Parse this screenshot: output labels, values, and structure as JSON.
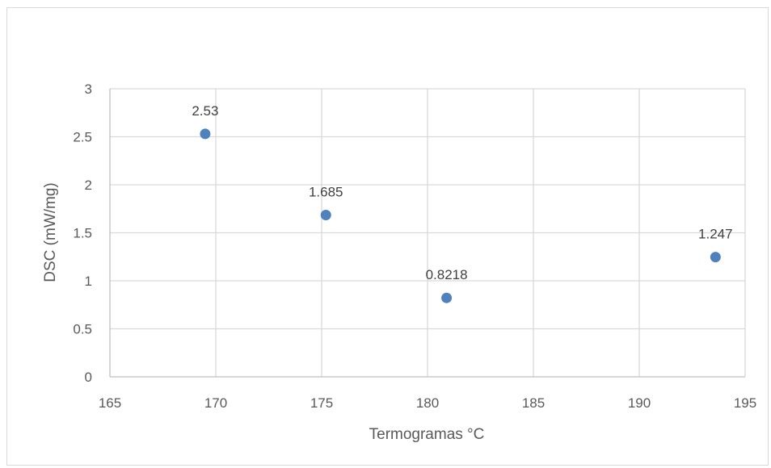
{
  "chart_data": {
    "type": "scatter",
    "title": "",
    "xlabel": "Termogramas °C",
    "ylabel": "DSC (mW/mg)",
    "xlim": [
      165,
      195
    ],
    "ylim": [
      0,
      3
    ],
    "x_ticks": [
      "165",
      "170",
      "175",
      "180",
      "185",
      "190",
      "195"
    ],
    "y_ticks": [
      "0",
      "0.5",
      "1",
      "1.5",
      "2",
      "2.5",
      "3"
    ],
    "grid": true,
    "legend": "none",
    "series": [
      {
        "color": "#4f81bd",
        "points": [
          {
            "x": 169.5,
            "y": 2.53,
            "label": "2.53"
          },
          {
            "x": 175.2,
            "y": 1.685,
            "label": "1.685"
          },
          {
            "x": 180.9,
            "y": 0.8218,
            "label": "0.8218"
          },
          {
            "x": 193.6,
            "y": 1.247,
            "label": "1.247"
          }
        ]
      }
    ]
  }
}
